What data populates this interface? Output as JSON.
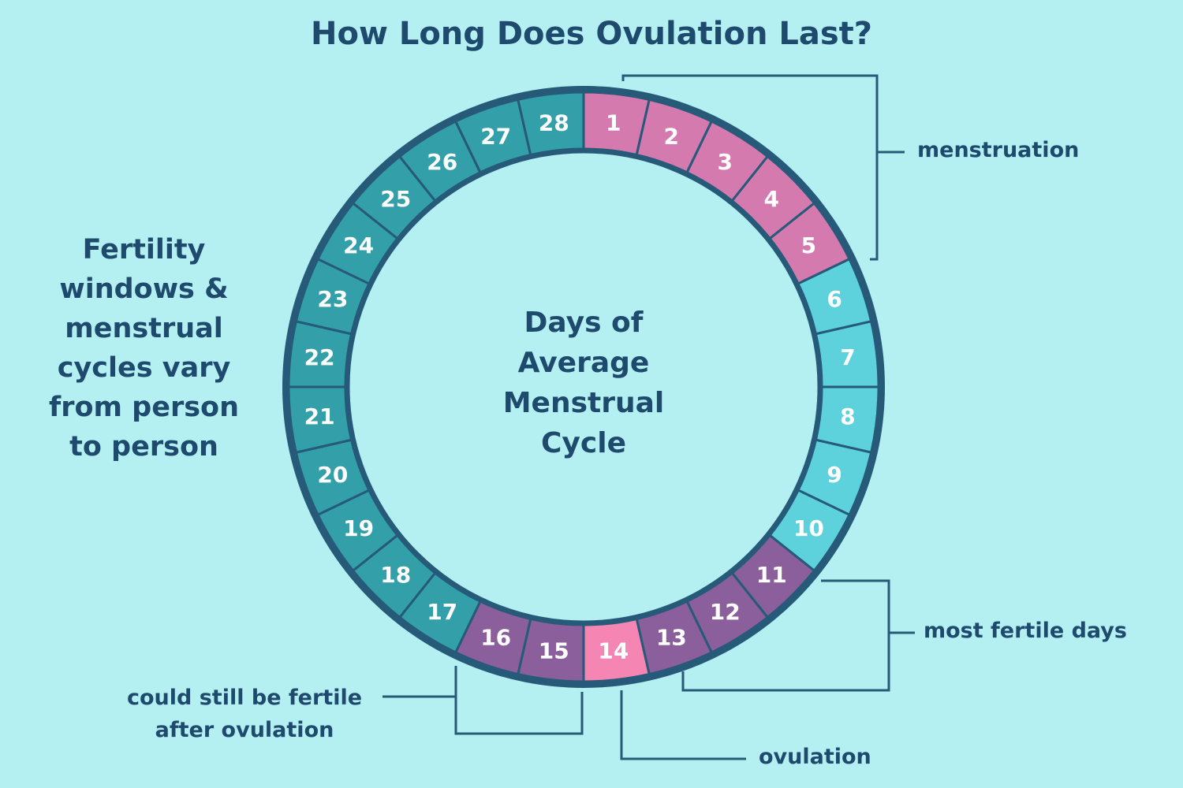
{
  "title": "How Long Does Ovulation Last?",
  "side_note": "Fertility windows & menstrual cycles vary from person to person",
  "center_label": "Days of Average Menstrual Cycle",
  "callouts": {
    "menstruation": "menstruation",
    "most_fertile": "most fertile days",
    "ovulation": "ovulation",
    "after_ovulation": "could still be fertile after ovulation"
  },
  "colors": {
    "background": "#b4f0f1",
    "text": "#1e4a6d",
    "ring_border": "#265a78",
    "menstruation": "#d57aae",
    "follicular": "#5ed2dc",
    "fertile": "#8a5f9b",
    "ovulation": "#f585b2",
    "luteal": "#329fa9",
    "day_label": "#ffffff"
  },
  "days": [
    {
      "day": "1",
      "phase": "menstruation"
    },
    {
      "day": "2",
      "phase": "menstruation"
    },
    {
      "day": "3",
      "phase": "menstruation"
    },
    {
      "day": "4",
      "phase": "menstruation"
    },
    {
      "day": "5",
      "phase": "menstruation"
    },
    {
      "day": "6",
      "phase": "follicular"
    },
    {
      "day": "7",
      "phase": "follicular"
    },
    {
      "day": "8",
      "phase": "follicular"
    },
    {
      "day": "9",
      "phase": "follicular"
    },
    {
      "day": "10",
      "phase": "follicular"
    },
    {
      "day": "11",
      "phase": "fertile"
    },
    {
      "day": "12",
      "phase": "fertile"
    },
    {
      "day": "13",
      "phase": "fertile"
    },
    {
      "day": "14",
      "phase": "ovulation"
    },
    {
      "day": "15",
      "phase": "fertile"
    },
    {
      "day": "16",
      "phase": "fertile"
    },
    {
      "day": "17",
      "phase": "luteal"
    },
    {
      "day": "18",
      "phase": "luteal"
    },
    {
      "day": "19",
      "phase": "luteal"
    },
    {
      "day": "20",
      "phase": "luteal"
    },
    {
      "day": "21",
      "phase": "luteal"
    },
    {
      "day": "22",
      "phase": "luteal"
    },
    {
      "day": "23",
      "phase": "luteal"
    },
    {
      "day": "24",
      "phase": "luteal"
    },
    {
      "day": "25",
      "phase": "luteal"
    },
    {
      "day": "26",
      "phase": "luteal"
    },
    {
      "day": "27",
      "phase": "luteal"
    },
    {
      "day": "28",
      "phase": "luteal"
    }
  ]
}
